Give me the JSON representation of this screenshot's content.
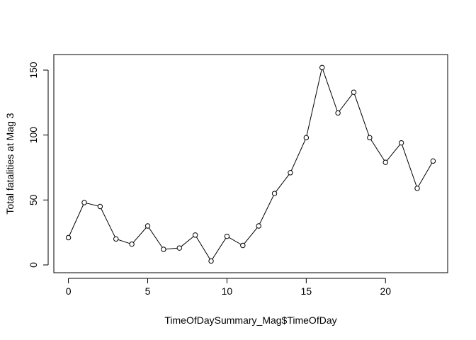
{
  "chart_data": {
    "type": "line",
    "title": "",
    "xlabel": "TimeOfDaySummary_Mag$TimeOfDay",
    "ylabel": "Total fatalities at Mag 3",
    "x": [
      0,
      1,
      2,
      3,
      4,
      5,
      6,
      7,
      8,
      9,
      10,
      11,
      12,
      13,
      14,
      15,
      16,
      17,
      18,
      19,
      20,
      21,
      22,
      23
    ],
    "series": [
      {
        "values": [
          21,
          48,
          45,
          20,
          16,
          30,
          12,
          13,
          23,
          3,
          22,
          15,
          30,
          55,
          71,
          98,
          152,
          117,
          133,
          98,
          79,
          94,
          59,
          80
        ]
      }
    ],
    "xlim": [
      -0.92,
      23.92
    ],
    "ylim": [
      -6.0,
      162.0
    ],
    "x_ticks": [
      0,
      5,
      10,
      15,
      20
    ],
    "x_tick_labels": [
      "0",
      "5",
      "10",
      "15",
      "20"
    ],
    "y_ticks": [
      0,
      50,
      100,
      150
    ],
    "y_tick_labels": [
      "0",
      "50",
      "100",
      "150"
    ],
    "markers": "open-circle",
    "line_color": "#000000",
    "grid": false,
    "legend": "none"
  }
}
